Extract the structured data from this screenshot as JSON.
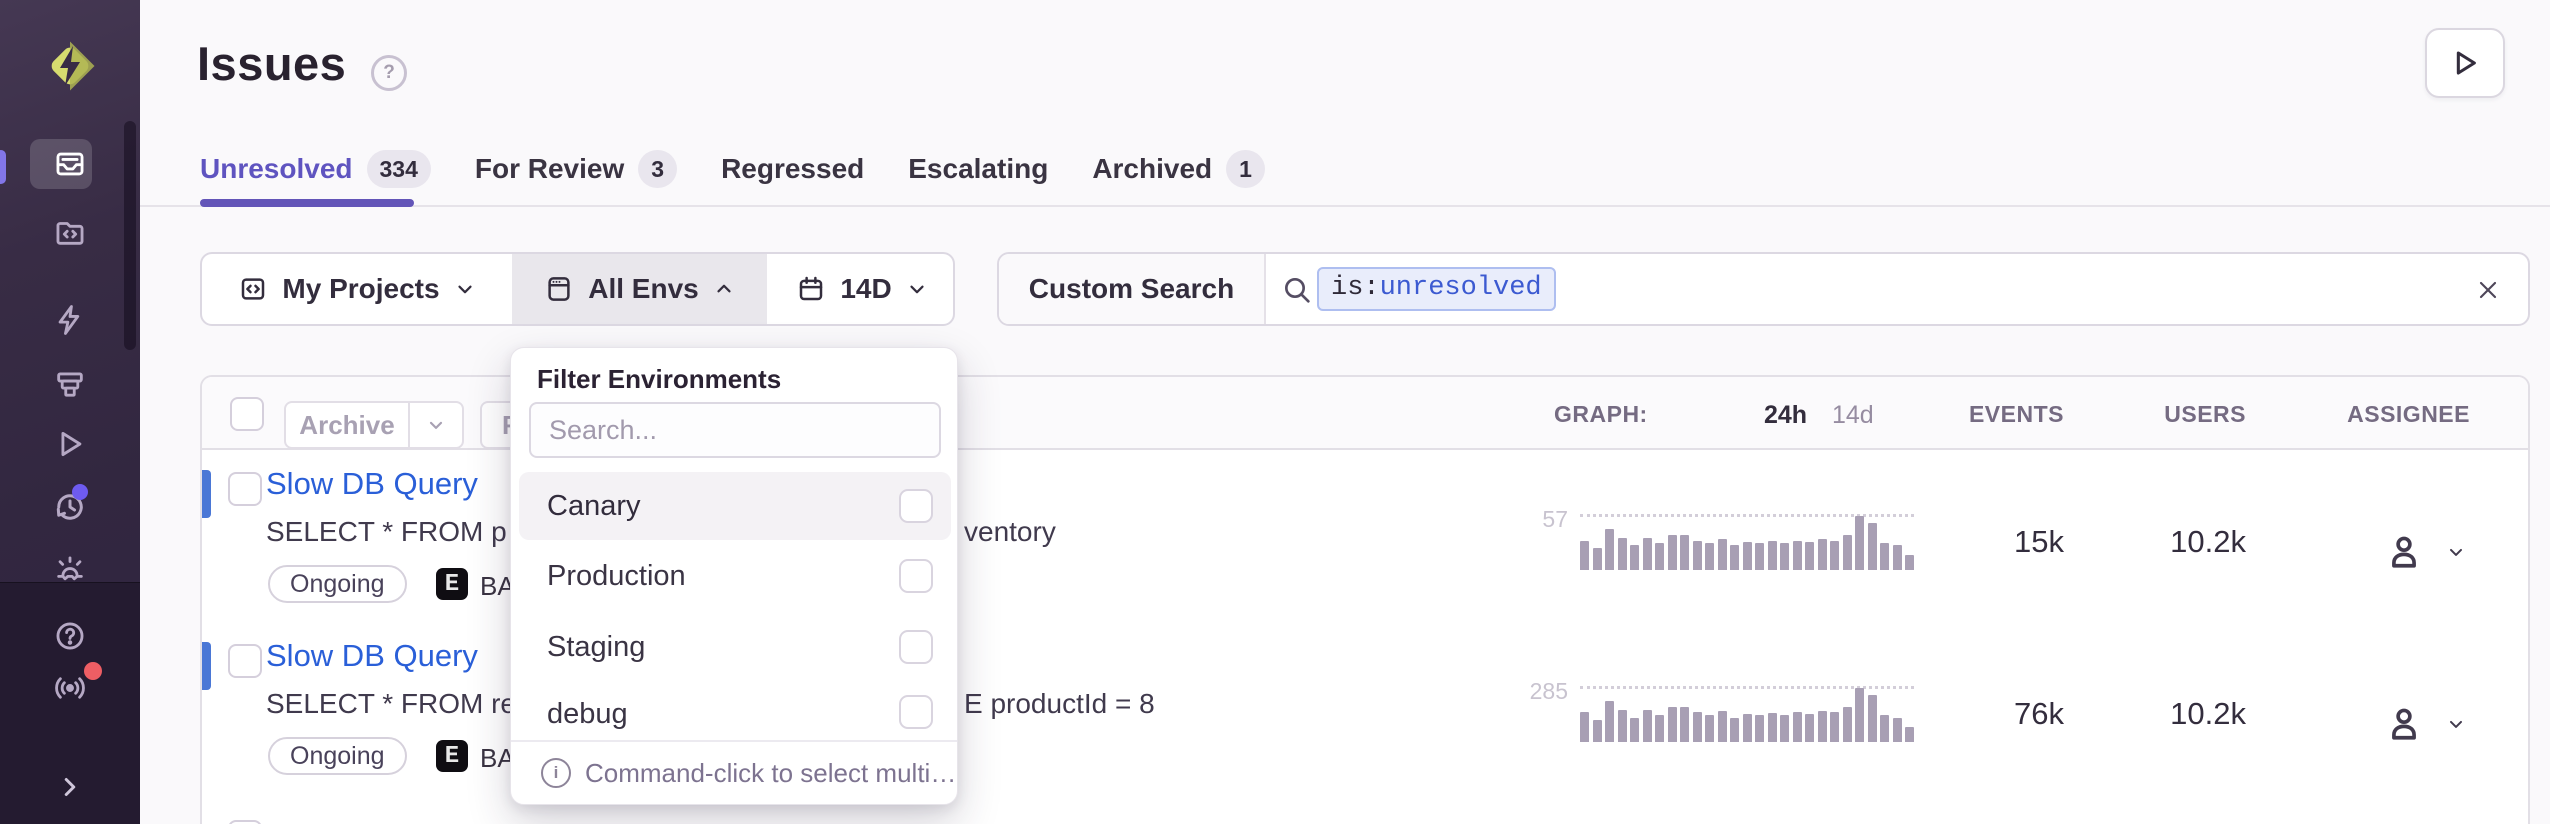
{
  "header": {
    "title": "Issues",
    "help_icon": "question-mark-circle",
    "play_button_icon": "play-triangle"
  },
  "sidebar": {
    "logo_icon": "lightning-diamond-logo",
    "icons": [
      "issues-inbox-icon",
      "projects-folder-code-icon",
      "lightning-icon",
      "collect-icon",
      "replays-play-icon",
      "history-clock-icon",
      "alerts-siren-icon",
      "help-icon",
      "broadcast-icon",
      "collapse-chevron-icon"
    ],
    "active_item": "issues",
    "badges": {
      "history_dot_color": "#6e5bf0",
      "broadcast_dot_color": "#ee5e64"
    }
  },
  "tabs": [
    {
      "label": "Unresolved",
      "count": "334",
      "active": true
    },
    {
      "label": "For Review",
      "count": "3",
      "active": false
    },
    {
      "label": "Regressed",
      "count": "",
      "active": false
    },
    {
      "label": "Escalating",
      "count": "",
      "active": false
    },
    {
      "label": "Archived",
      "count": "1",
      "active": false
    }
  ],
  "filters": {
    "projects_label": "My Projects",
    "envs_label": "All Envs",
    "date_label": "14D"
  },
  "search": {
    "section_label": "Custom Search",
    "token_key": "is:",
    "token_value": "unresolved"
  },
  "env_dropdown": {
    "title": "Filter Environments",
    "search_placeholder": "Search...",
    "options": [
      {
        "label": "Canary",
        "checked": false,
        "highlighted": true
      },
      {
        "label": "Production",
        "checked": false,
        "highlighted": false
      },
      {
        "label": "Staging",
        "checked": false,
        "highlighted": false
      },
      {
        "label": "debug",
        "checked": false,
        "highlighted": false
      }
    ],
    "footer_hint": "Command-click to select multi…"
  },
  "table": {
    "bulk_archive_label": "Archive",
    "bulk_partial_button_label": "R",
    "graph_label": "GRAPH:",
    "graph_period_24h": "24h",
    "graph_period_14d": "14d",
    "columns": {
      "events": "EVENTS",
      "users": "USERS",
      "assignee": "ASSIGNEE"
    },
    "rows": [
      {
        "title": "Slow DB Query",
        "subtitle_visible_left": "SELECT * FROM p",
        "subtitle_visible_right": "ventory",
        "status_badge": "Ongoing",
        "project_icon_letter": "E",
        "project_name_visible": "BAC",
        "graph_peak_label": "57",
        "bars": [
          31,
          23,
          43,
          34,
          26,
          34,
          29,
          37,
          37,
          31,
          29,
          33,
          26,
          30,
          29,
          31,
          29,
          31,
          30,
          33,
          31,
          37,
          57,
          50,
          29,
          26,
          16
        ],
        "events": "15k",
        "users": "10.2k",
        "unread": true
      },
      {
        "title": "Slow DB Query",
        "subtitle_visible_left": "SELECT * FROM re",
        "subtitle_visible_right": "E productId = 8",
        "status_badge": "Ongoing",
        "project_icon_letter": "E",
        "project_name_visible": "BAC",
        "graph_peak_label": "285",
        "bars": [
          157,
          114,
          214,
          171,
          128,
          171,
          143,
          186,
          186,
          157,
          143,
          166,
          128,
          150,
          143,
          154,
          143,
          157,
          150,
          166,
          157,
          186,
          285,
          250,
          143,
          128,
          80
        ],
        "events": "76k",
        "users": "10.2k",
        "unread": true
      }
    ]
  },
  "colors": {
    "accent_purple": "#6355b8",
    "link_blue": "#2a5fd8",
    "unread_blue": "#4a77d6",
    "token_value_blue": "#3c5ad1",
    "sidebar_bg": "#382c45",
    "bar_gray": "#a89fb4"
  }
}
